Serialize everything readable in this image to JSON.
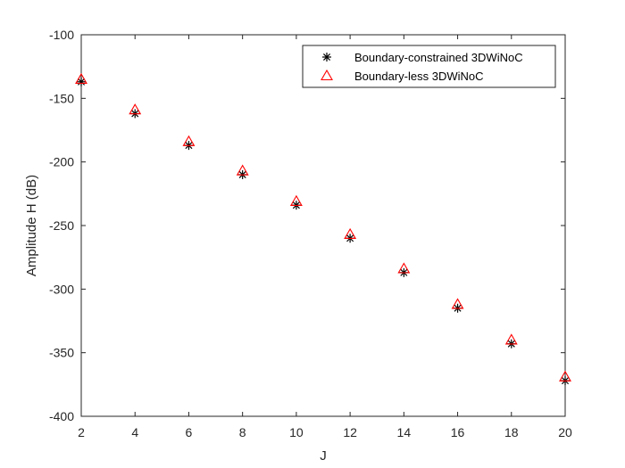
{
  "chart_data": {
    "type": "scatter",
    "title": "",
    "xlabel": "J",
    "ylabel": "Amplitude H (dB)",
    "xlim": [
      2,
      20
    ],
    "ylim": [
      -400,
      -100
    ],
    "xticks": [
      2,
      4,
      6,
      8,
      10,
      12,
      14,
      16,
      18,
      20
    ],
    "yticks": [
      -100,
      -150,
      -200,
      -250,
      -300,
      -350,
      -400
    ],
    "grid": false,
    "legend_position": "top-right",
    "x": [
      2,
      4,
      6,
      8,
      10,
      12,
      14,
      16,
      18,
      20
    ],
    "series": [
      {
        "name": "Boundary-constrained 3DWiNoC",
        "marker": "asterisk",
        "color": "#000000",
        "values": [
          -137,
          -162,
          -187,
          -210,
          -234,
          -260,
          -287,
          -315,
          -343,
          -372
        ]
      },
      {
        "name": "Boundary-less 3DWiNoC",
        "marker": "triangle",
        "color": "#ff0000",
        "values": [
          -135,
          -159,
          -184,
          -207,
          -231,
          -257,
          -284,
          -312,
          -340,
          -369
        ]
      }
    ]
  }
}
